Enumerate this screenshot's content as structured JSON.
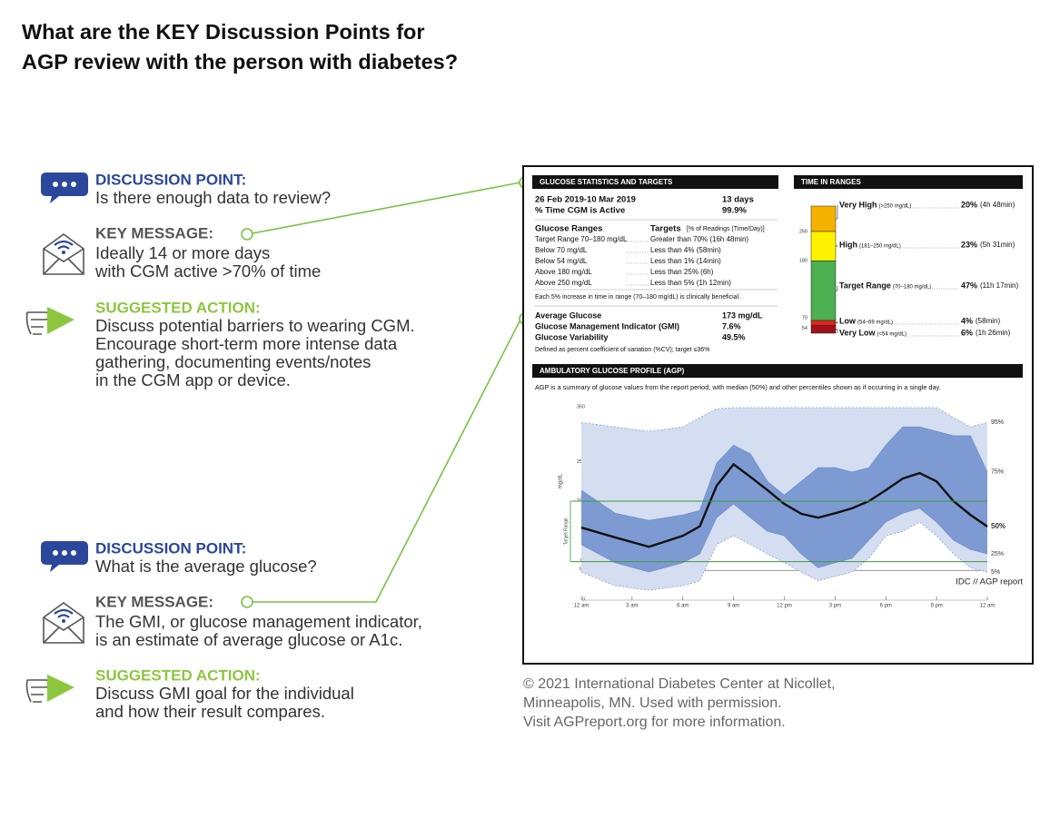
{
  "header": {
    "title": [
      "What are the KEY Discussion Points for",
      "AGP review with the person with diabetes?"
    ]
  },
  "sections": [
    {
      "discussion": {
        "label": "DISCUSSION POINT:",
        "text": [
          "Is there enough data to review?"
        ]
      },
      "key_message": {
        "label": "KEY MESSAGE:",
        "text": [
          "Ideally 14 or more days",
          "with CGM active >70% of time"
        ]
      },
      "action": {
        "label": "SUGGESTED ACTION:",
        "text": [
          "Discuss potential barriers to wearing CGM.",
          "Encourage short-term more intense data",
          "gathering, documenting events/notes",
          "in the CGM app or device."
        ]
      }
    },
    {
      "discussion": {
        "label": "DISCUSSION POINT:",
        "text": [
          "What is the average glucose?"
        ]
      },
      "key_message": {
        "label": "KEY MESSAGE:",
        "text": [
          "The GMI, or glucose management indicator,",
          "is an estimate of average glucose or A1c."
        ]
      },
      "action": {
        "label": "SUGGESTED ACTION:",
        "text": [
          "Discuss GMI goal for the individual",
          "and how their result compares."
        ]
      }
    }
  ],
  "report": {
    "stats": {
      "heading": "GLUCOSE STATISTICS AND TARGETS",
      "period": "26 Feb 2019-10 Mar 2019",
      "days": "13 days",
      "active_label": "% Time CGM is Active",
      "active": "99.9%",
      "ranges_heading": "Glucose Ranges",
      "targets_heading": "Targets",
      "targets_note": "[% of Readings (Time/Day)]",
      "rows": [
        [
          "Target Range 70–180 mg/dL",
          "Greater than 70% (16h 48min)"
        ],
        [
          "Below 70 mg/dL",
          "Less than 4% (58min)"
        ],
        [
          "Below 54 mg/dL",
          "Less than 1% (14min)"
        ],
        [
          "Above 180 mg/dL",
          "Less than 25% (6h)"
        ],
        [
          "Above 250 mg/dL",
          "Less than 5% (1h 12min)"
        ]
      ],
      "note": "Each 5% increase in time in range (70–180 mg/dL) is clinically beneficial.",
      "metrics": [
        [
          "Average Glucose",
          "173 mg/dL"
        ],
        [
          "Glucose Management Indicator (GMI)",
          "7.6%"
        ],
        [
          "Glucose Variability",
          "49.5%"
        ]
      ],
      "cv_note": "Defined as percent coefficient of variation (%CV); target ≤36%"
    },
    "tir": {
      "heading": "TIME IN RANGES",
      "thresholds": [
        250,
        180,
        70,
        54
      ],
      "ranges": [
        {
          "name": "Very High",
          "range": "(>250 mg/dL)",
          "value": 20,
          "value_label": "20%",
          "time": "(4h 48min)",
          "color": "#f6b100"
        },
        {
          "name": "High",
          "range": "(181–250 mg/dL)",
          "value": 23,
          "value_label": "23%",
          "time": "(5h 31min)",
          "color": "#fff200"
        },
        {
          "name": "Target Range",
          "range": "(70–180 mg/dL)",
          "value": 47,
          "value_label": "47%",
          "time": "(11h 17min)",
          "color": "#4caf50"
        },
        {
          "name": "Low",
          "range": "(54–69 mg/dL)",
          "value": 4,
          "value_label": "4%",
          "time": "(58min)",
          "color": "#e2231a"
        },
        {
          "name": "Very Low",
          "range": "(<54 mg/dL)",
          "value": 6,
          "value_label": "6%",
          "time": "(1h 26min)",
          "color": "#a0101a"
        }
      ]
    },
    "agp": {
      "type": "area",
      "heading": "AMBULATORY GLUCOSE PROFILE (AGP)",
      "description": "AGP is a summary of glucose values from the report period, with median (50%) and other percentiles shown as if occurring in a single day.",
      "y_label": "mg/dL",
      "range_label": "Target Range",
      "source": "IDC // AGP report",
      "x": [
        0,
        2,
        4,
        6,
        7,
        8,
        9,
        10,
        11,
        12,
        13,
        14,
        15,
        16,
        17,
        18,
        19,
        20,
        21,
        22,
        23,
        24
      ],
      "series": [
        {
          "name": "95%",
          "color": "#d5ddf0",
          "values": [
            323,
            315,
            307,
            315,
            332,
            348,
            350,
            350,
            350,
            350,
            350,
            350,
            350,
            350,
            350,
            350,
            350,
            350,
            350,
            332,
            315,
            323
          ]
        },
        {
          "name": "75%",
          "color": "#7d9bd2",
          "values": [
            200,
            158,
            145,
            155,
            163,
            249,
            282,
            266,
            216,
            191,
            216,
            241,
            241,
            233,
            241,
            282,
            315,
            315,
            307,
            299,
            299,
            233
          ]
        },
        {
          "name": "50%",
          "color": "#111111",
          "values": [
            132,
            114,
            97,
            117,
            134,
            208,
            247,
            224,
            200,
            175,
            157,
            150,
            158,
            167,
            180,
            200,
            221,
            231,
            216,
            180,
            155,
            134
          ]
        },
        {
          "name": "25%",
          "color": "#7d9bd2",
          "values": [
            101,
            68,
            51,
            68,
            84,
            150,
            175,
            150,
            125,
            117,
            84,
            59,
            68,
            76,
            109,
            142,
            158,
            167,
            142,
            109,
            92,
            84
          ]
        },
        {
          "name": "5%",
          "color": "#d5ddf0",
          "values": [
            51,
            26,
            18,
            26,
            35,
            101,
            117,
            101,
            84,
            68,
            51,
            35,
            43,
            51,
            76,
            117,
            125,
            142,
            117,
            84,
            59,
            51
          ]
        }
      ],
      "target": [
        70,
        180
      ],
      "xlim": [
        0,
        24
      ],
      "ylim": [
        0,
        350
      ],
      "yticks": [
        0,
        54,
        70,
        180,
        250,
        350
      ],
      "xticks": [
        {
          "value": 0,
          "label": "12 am"
        },
        {
          "value": 3,
          "label": "3 am"
        },
        {
          "value": 6,
          "label": "6 am"
        },
        {
          "value": 9,
          "label": "9 am"
        },
        {
          "value": 12,
          "label": "12 pm"
        },
        {
          "value": 15,
          "label": "3 pm"
        },
        {
          "value": 18,
          "label": "6 pm"
        },
        {
          "value": 21,
          "label": "9 pm"
        },
        {
          "value": 24,
          "label": "12 am"
        }
      ]
    }
  },
  "credit": [
    "© 2021 International Diabetes Center at Nicollet,",
    "Minneapolis, MN. Used with permission.",
    "Visit AGPreport.org for more information."
  ]
}
